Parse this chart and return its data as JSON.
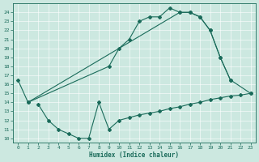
{
  "xlabel": "Humidex (Indice chaleur)",
  "background_color": "#cce8e0",
  "line_color": "#1a6b5a",
  "xlim": [
    -0.5,
    23.5
  ],
  "ylim": [
    9.5,
    25.0
  ],
  "xticks": [
    0,
    1,
    2,
    3,
    4,
    5,
    6,
    7,
    8,
    9,
    10,
    11,
    12,
    13,
    14,
    15,
    16,
    17,
    18,
    19,
    20,
    21,
    22,
    23
  ],
  "yticks": [
    10,
    11,
    12,
    13,
    14,
    15,
    16,
    17,
    18,
    19,
    20,
    21,
    22,
    23,
    24
  ],
  "line1_x": [
    0,
    1,
    9,
    10,
    11,
    12,
    13,
    14,
    15,
    16,
    17,
    18,
    19,
    20,
    21
  ],
  "line1_y": [
    16.5,
    14.0,
    18.0,
    20.0,
    21.0,
    23.0,
    23.5,
    23.5,
    24.5,
    24.0,
    24.0,
    23.5,
    22.0,
    19.0,
    16.5
  ],
  "line2_x": [
    1,
    16,
    17,
    18,
    19,
    20,
    21,
    23
  ],
  "line2_y": [
    14.0,
    24.0,
    24.0,
    23.5,
    22.0,
    19.0,
    16.5,
    15.0
  ],
  "line3_x": [
    2,
    3,
    4,
    5,
    6,
    7,
    8,
    9,
    10,
    11,
    12,
    13,
    14,
    15,
    16,
    17,
    18,
    19,
    20,
    21,
    22,
    23
  ],
  "line3_y": [
    13.8,
    12.0,
    11.0,
    10.5,
    10.0,
    10.0,
    14.0,
    11.0,
    12.0,
    12.3,
    12.6,
    12.8,
    13.0,
    13.3,
    13.5,
    13.8,
    14.0,
    14.3,
    14.5,
    14.7,
    14.8,
    15.0
  ]
}
